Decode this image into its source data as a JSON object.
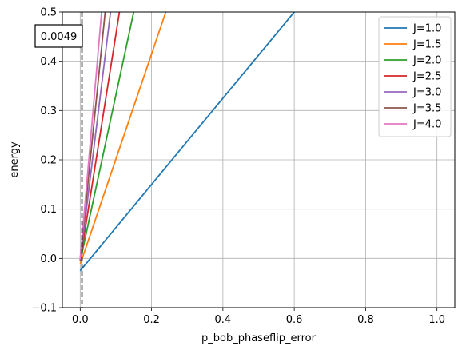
{
  "chart_data": {
    "type": "line",
    "title": "",
    "xlabel": "p_bob_phaseflip_error",
    "ylabel": "energy",
    "xlim": [
      -0.05,
      1.05
    ],
    "ylim": [
      -0.1,
      0.5
    ],
    "xticks": [
      0.0,
      0.2,
      0.4,
      0.6,
      0.8,
      1.0
    ],
    "xtick_labels": [
      "0.0",
      "0.2",
      "0.4",
      "0.6",
      "0.8",
      "1.0"
    ],
    "yticks": [
      -0.1,
      0.0,
      0.1,
      0.2,
      0.3,
      0.4,
      0.5
    ],
    "ytick_labels": [
      "−0.1",
      "0.0",
      "0.1",
      "0.2",
      "0.3",
      "0.4",
      "0.5"
    ],
    "grid": true,
    "legend_position": "top-right",
    "vline": {
      "x": 0.0049,
      "style": "dashed",
      "color": "#000000"
    },
    "annotation": "0.0049",
    "series": [
      {
        "name": "J=1.0",
        "color": "#1f77b4",
        "x": [
          0.0,
          0.6
        ],
        "y": [
          -0.025,
          0.5
        ]
      },
      {
        "name": "J=1.5",
        "color": "#ff7f0e",
        "x": [
          0.0,
          0.24
        ],
        "y": [
          -0.012,
          0.5
        ]
      },
      {
        "name": "J=2.0",
        "color": "#2ca02c",
        "x": [
          0.0,
          0.15
        ],
        "y": [
          -0.006,
          0.5
        ]
      },
      {
        "name": "J=2.5",
        "color": "#d62728",
        "x": [
          0.0,
          0.11
        ],
        "y": [
          -0.004,
          0.5
        ]
      },
      {
        "name": "J=3.0",
        "color": "#9467bd",
        "x": [
          0.0,
          0.085
        ],
        "y": [
          -0.003,
          0.5
        ]
      },
      {
        "name": "J=3.5",
        "color": "#8c564b",
        "x": [
          0.0,
          0.07
        ],
        "y": [
          -0.002,
          0.5
        ]
      },
      {
        "name": "J=4.0",
        "color": "#e377c2",
        "x": [
          0.0,
          0.06
        ],
        "y": [
          -0.0015,
          0.5
        ]
      }
    ]
  }
}
